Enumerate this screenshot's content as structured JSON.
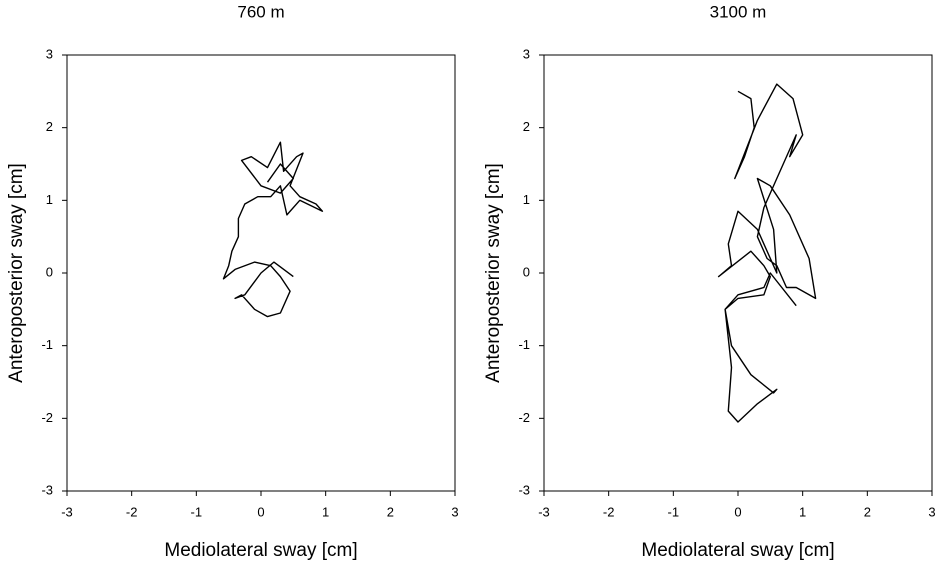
{
  "chart_data": [
    {
      "type": "line",
      "title": "760 m",
      "xlabel": "Mediolateral sway [cm]",
      "ylabel": "Anteroposterior sway [cm]",
      "xlim": [
        -3,
        3
      ],
      "ylim": [
        -3,
        3
      ],
      "xticks": [
        -3,
        -2,
        -1,
        0,
        1,
        2,
        3
      ],
      "yticks": [
        -3,
        -2,
        -1,
        0,
        1,
        2,
        3
      ],
      "color": "#000000",
      "x": [
        0.1,
        0.3,
        0.5,
        0.3,
        0.0,
        -0.3,
        -0.15,
        0.1,
        0.3,
        0.35,
        0.55,
        0.65,
        0.45,
        0.6,
        0.85,
        0.95,
        0.6,
        0.4,
        0.3,
        0.15,
        -0.05,
        -0.25,
        -0.35,
        -0.35,
        -0.45,
        -0.5,
        -0.58,
        -0.4,
        -0.1,
        0.15,
        0.3,
        0.45,
        0.3,
        0.1,
        -0.1,
        -0.3,
        -0.4,
        -0.25,
        0.0,
        0.2,
        0.5
      ],
      "values": [
        1.25,
        1.5,
        1.3,
        1.1,
        1.2,
        1.55,
        1.6,
        1.45,
        1.8,
        1.4,
        1.6,
        1.65,
        1.2,
        1.05,
        0.95,
        0.85,
        1.0,
        0.8,
        1.2,
        1.05,
        1.05,
        0.95,
        0.75,
        0.5,
        0.3,
        0.1,
        -0.08,
        0.05,
        0.15,
        0.1,
        -0.05,
        -0.25,
        -0.55,
        -0.6,
        -0.5,
        -0.3,
        -0.35,
        -0.3,
        0.0,
        0.15,
        -0.05
      ]
    },
    {
      "type": "line",
      "title": "3100 m",
      "xlabel": "Mediolateral sway [cm]",
      "ylabel": "Anteroposterior sway [cm]",
      "xlim": [
        -3,
        3
      ],
      "ylim": [
        -3,
        3
      ],
      "xticks": [
        -3,
        -2,
        -1,
        0,
        1,
        2,
        3
      ],
      "yticks": [
        -3,
        -2,
        -1,
        0,
        1,
        2,
        3
      ],
      "color": "#000000",
      "x": [
        0.0,
        0.2,
        0.25,
        0.1,
        -0.05,
        0.3,
        0.6,
        0.85,
        1.0,
        0.8,
        0.9,
        0.6,
        0.4,
        0.3,
        0.45,
        0.6,
        0.75,
        0.9,
        1.2,
        1.1,
        0.8,
        0.5,
        0.3,
        0.55,
        0.6,
        0.3,
        0.0,
        -0.15,
        -0.1,
        -0.3,
        0.2,
        0.4,
        0.5,
        0.4,
        0.0,
        -0.2,
        -0.1,
        0.2,
        0.55,
        0.6,
        0.3,
        0.0,
        -0.15,
        -0.1,
        -0.2,
        0.0,
        0.4,
        0.5,
        0.9
      ],
      "values": [
        2.5,
        2.4,
        2.0,
        1.6,
        1.3,
        2.1,
        2.6,
        2.4,
        1.9,
        1.6,
        1.9,
        1.3,
        0.9,
        0.5,
        0.2,
        0.1,
        -0.2,
        -0.2,
        -0.35,
        0.2,
        0.8,
        1.2,
        1.3,
        0.6,
        0.0,
        0.6,
        0.85,
        0.4,
        0.1,
        -0.05,
        0.3,
        0.1,
        -0.05,
        -0.3,
        -0.35,
        -0.5,
        -1.0,
        -1.4,
        -1.65,
        -1.6,
        -1.8,
        -2.05,
        -1.9,
        -1.3,
        -0.5,
        -0.3,
        -0.2,
        0.0,
        -0.45
      ]
    }
  ]
}
